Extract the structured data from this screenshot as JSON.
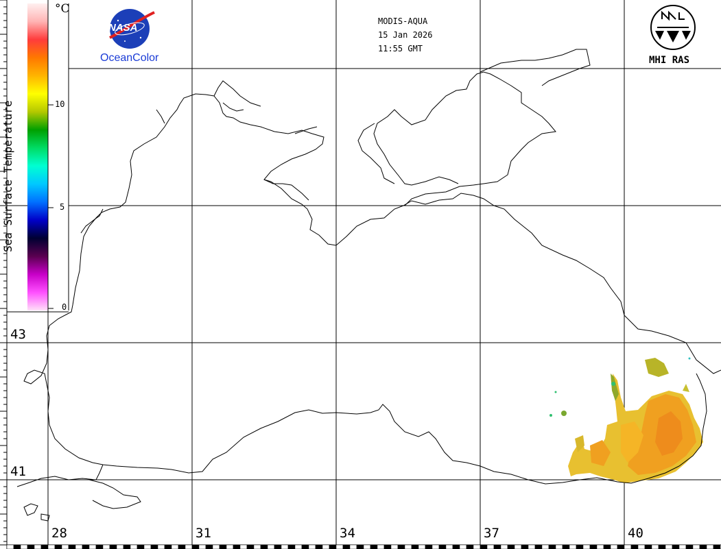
{
  "header": {
    "satellite": "MODIS-AQUA",
    "date": "15 Jan 2026",
    "time": "11:55 GMT"
  },
  "logos": {
    "nasa_text": "NASA",
    "oceancolor_text": "OceanColor",
    "mhi_text": "MHI RAS"
  },
  "colorbar": {
    "label": "Sea Surface Temperature",
    "unit": "°C",
    "min": 0,
    "max": 14,
    "ticks": [
      "10",
      "5",
      "0"
    ],
    "stops": [
      "#ffe0f8",
      "#ff50ff",
      "#c800c8",
      "#5a0050",
      "#000032",
      "#0000c8",
      "#0070ff",
      "#00c8ff",
      "#00ffd2",
      "#00dc64",
      "#00a000",
      "#b4c800",
      "#ffff00",
      "#ffb400",
      "#ff7800",
      "#ff3c3c",
      "#ffb4b4",
      "#fff0f0"
    ]
  },
  "axes": {
    "latitudes": [
      "43",
      "41"
    ],
    "longitudes": [
      "28",
      "31",
      "34",
      "37",
      "40"
    ]
  },
  "colors": {
    "sst_warm": "#f0a020",
    "sst_mid": "#e8c030",
    "sst_cool": "#a0b020",
    "sst_green": "#30c070"
  }
}
